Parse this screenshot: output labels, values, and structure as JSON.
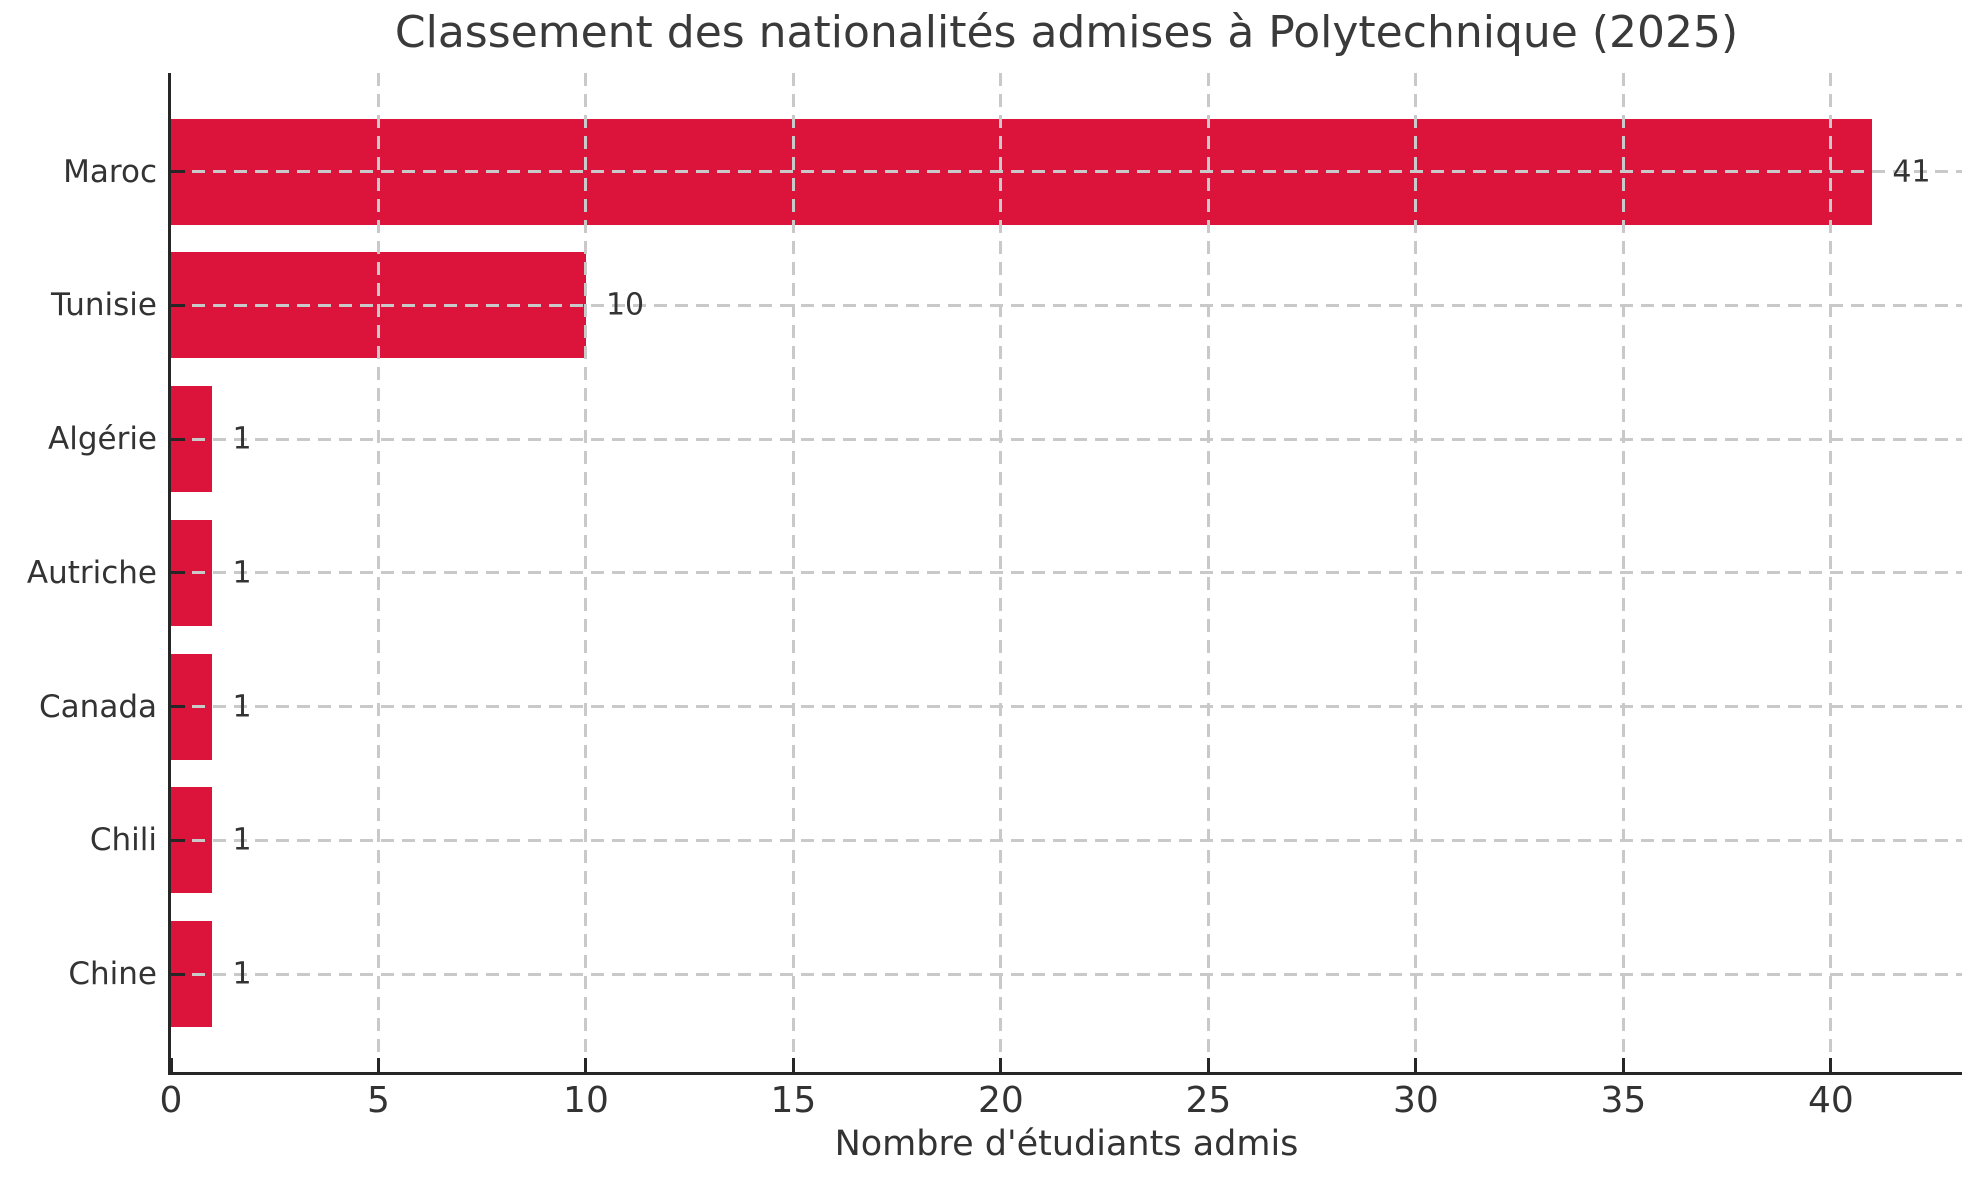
{
  "chart_data": {
    "type": "bar",
    "orientation": "horizontal",
    "title": "Classement des nationalités admises à Polytechnique (2025)",
    "xlabel": "Nombre d'étudiants admis",
    "ylabel": "",
    "categories": [
      "Maroc",
      "Tunisie",
      "Algérie",
      "Autriche",
      "Canada",
      "Chili",
      "Chine"
    ],
    "values": [
      41,
      10,
      1,
      1,
      1,
      1,
      1
    ],
    "bar_value_labels": [
      "41",
      "10",
      "1",
      "1",
      "1",
      "1",
      "1"
    ],
    "xticks": [
      0,
      5,
      10,
      15,
      20,
      25,
      30,
      35,
      40
    ],
    "xlim": [
      0,
      43.16
    ],
    "grid": "dashed x and y gridlines drawn over bars",
    "legend": "none",
    "colors": {
      "bar": "#DC143C",
      "grid": "#c9c9c9",
      "spine": "#262626",
      "text": "#333333",
      "title": "#3a3a3a"
    }
  }
}
